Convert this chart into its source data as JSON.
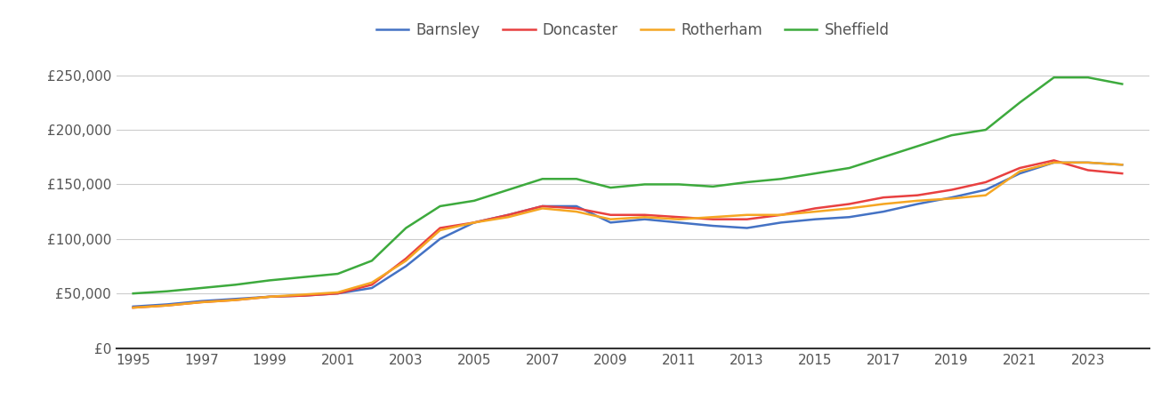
{
  "years": [
    1995,
    1996,
    1997,
    1998,
    1999,
    2000,
    2001,
    2002,
    2003,
    2004,
    2005,
    2006,
    2007,
    2008,
    2009,
    2010,
    2011,
    2012,
    2013,
    2014,
    2015,
    2016,
    2017,
    2018,
    2019,
    2020,
    2021,
    2022,
    2023,
    2024
  ],
  "barnsley": [
    38000,
    40000,
    43000,
    45000,
    47000,
    48000,
    50000,
    55000,
    75000,
    100000,
    115000,
    122000,
    130000,
    130000,
    115000,
    118000,
    115000,
    112000,
    110000,
    115000,
    118000,
    120000,
    125000,
    132000,
    138000,
    145000,
    160000,
    170000,
    170000,
    168000
  ],
  "doncaster": [
    37000,
    39000,
    42000,
    44000,
    47000,
    48000,
    50000,
    58000,
    82000,
    110000,
    115000,
    122000,
    130000,
    128000,
    122000,
    122000,
    120000,
    118000,
    118000,
    122000,
    128000,
    132000,
    138000,
    140000,
    145000,
    152000,
    165000,
    172000,
    163000,
    160000
  ],
  "rotherham": [
    37000,
    39000,
    42000,
    44000,
    47000,
    49000,
    51000,
    60000,
    80000,
    108000,
    115000,
    120000,
    128000,
    125000,
    118000,
    120000,
    118000,
    120000,
    122000,
    122000,
    125000,
    128000,
    132000,
    135000,
    137000,
    140000,
    162000,
    170000,
    170000,
    168000
  ],
  "sheffield": [
    50000,
    52000,
    55000,
    58000,
    62000,
    65000,
    68000,
    80000,
    110000,
    130000,
    135000,
    145000,
    155000,
    155000,
    147000,
    150000,
    150000,
    148000,
    152000,
    155000,
    160000,
    165000,
    175000,
    185000,
    195000,
    200000,
    225000,
    248000,
    248000,
    242000
  ],
  "colors": {
    "barnsley": "#4472c4",
    "doncaster": "#e84040",
    "rotherham": "#f5a623",
    "sheffield": "#3daa3d"
  },
  "ylim": [
    0,
    275000
  ],
  "yticks": [
    0,
    50000,
    100000,
    150000,
    200000,
    250000
  ],
  "xticks": [
    1995,
    1997,
    1999,
    2001,
    2003,
    2005,
    2007,
    2009,
    2011,
    2013,
    2015,
    2017,
    2019,
    2021,
    2023
  ],
  "xlim": [
    1994.5,
    2024.8
  ],
  "background_color": "#ffffff",
  "grid_color": "#cccccc",
  "line_width": 1.8,
  "tick_label_color": "#555555",
  "tick_fontsize": 11,
  "legend_fontsize": 12
}
